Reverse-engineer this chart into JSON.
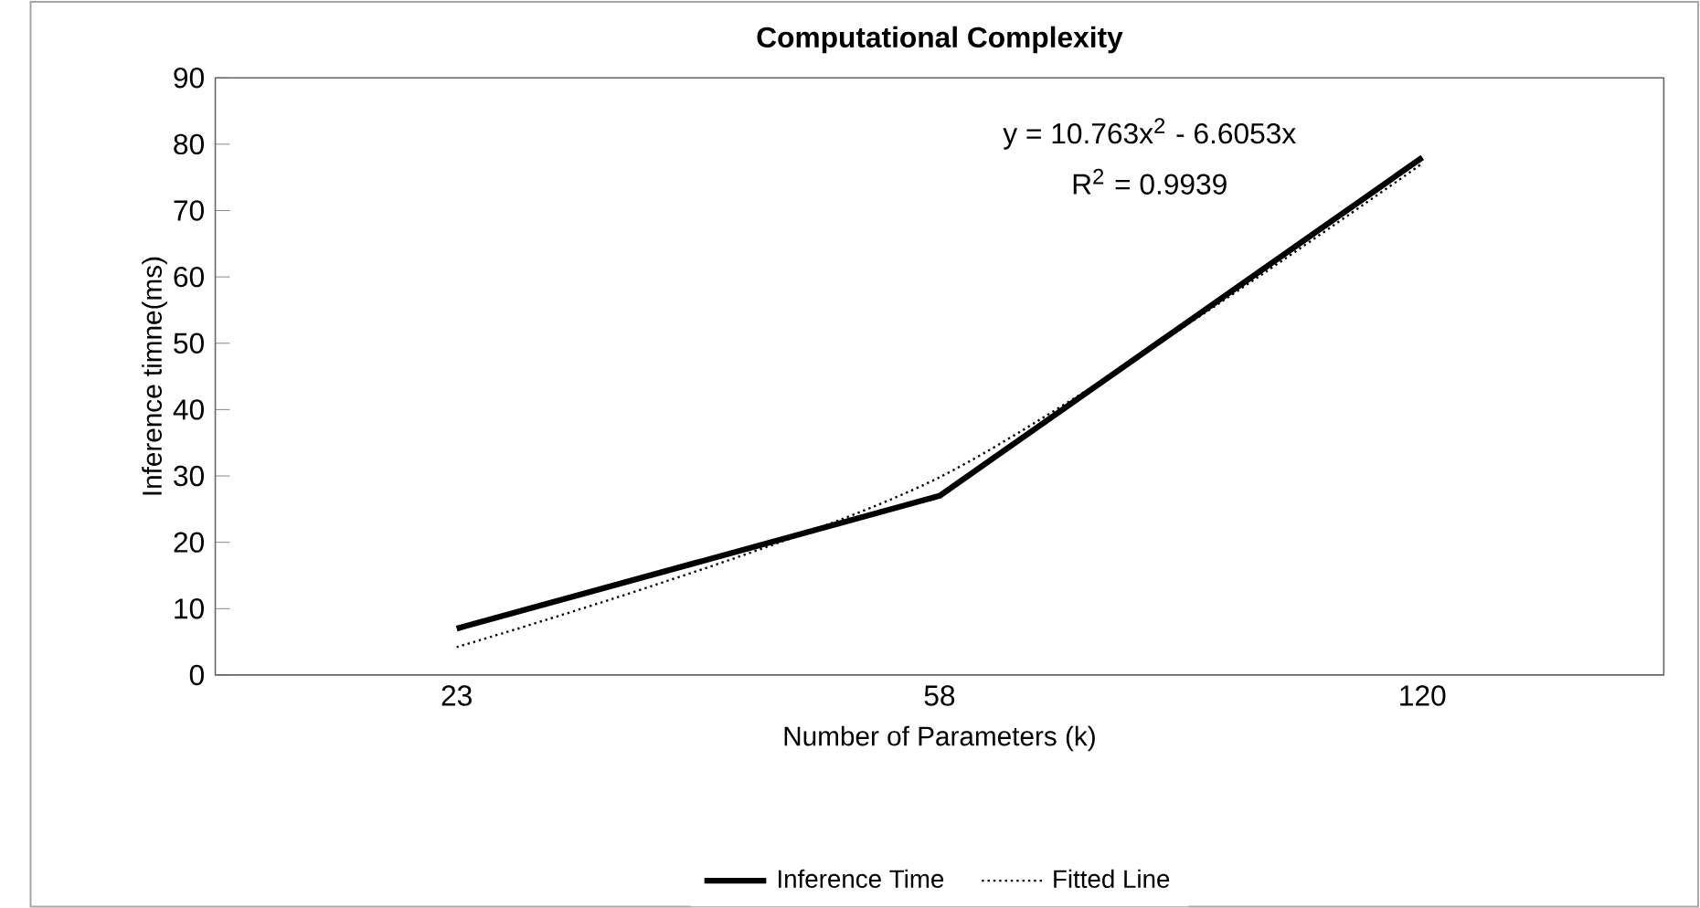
{
  "chart_data": {
    "type": "line",
    "title": "Computational Complexity",
    "xlabel": "Number of Parameters (k)",
    "ylabel": "Inference timne(ms)",
    "categories": [
      "23",
      "58",
      "120"
    ],
    "series": [
      {
        "name": "Inference Time",
        "color": "#000000",
        "values": [
          7,
          27,
          78
        ],
        "line_style": "solid"
      },
      {
        "name": "Fitted Line",
        "color": "#000000",
        "values": [
          4.2,
          29.8,
          77.1
        ],
        "line_style": "dotted"
      }
    ],
    "ylim": [
      0,
      90
    ],
    "yticks": [
      0,
      10,
      20,
      30,
      40,
      50,
      60,
      70,
      80,
      90
    ],
    "annotations": [
      "y = 10.763x$^{2}$ - 6.6053x",
      "R$^{2}$ = 0.9939"
    ],
    "legend": "bottom",
    "grid": false,
    "marker": "none"
  }
}
